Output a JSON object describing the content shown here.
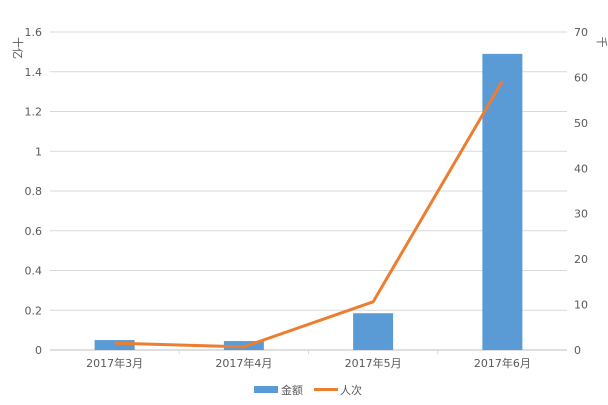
{
  "chart_data": {
    "type": "bar+line",
    "categories": [
      "2017年3月",
      "2017年4月",
      "2017年5月",
      "2017年6月"
    ],
    "series": [
      {
        "name": "金额",
        "type": "bar",
        "axis": "left",
        "color": "#5B9BD5",
        "values": [
          0.05,
          0.045,
          0.185,
          1.49
        ]
      },
      {
        "name": "人次",
        "type": "line",
        "axis": "right",
        "color": "#ED7D31",
        "values": [
          1.5,
          0.7,
          10.6,
          59.2
        ]
      }
    ],
    "left_axis": {
      "label": "十亿",
      "ylim": [
        0,
        1.6
      ],
      "ticks": [
        "0",
        "0.2",
        "0.4",
        "0.6",
        "0.8",
        "1",
        "1.2",
        "1.4",
        "1.6"
      ]
    },
    "right_axis": {
      "label": "千",
      "ylim": [
        0,
        70
      ],
      "ticks": [
        "0",
        "10",
        "20",
        "30",
        "40",
        "50",
        "60",
        "70"
      ]
    },
    "grid": true,
    "legend": "bottom"
  }
}
